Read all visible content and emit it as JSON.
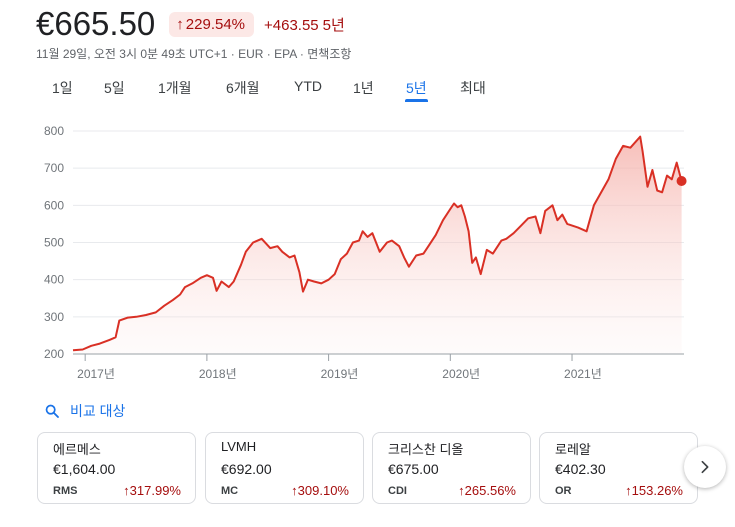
{
  "quote": {
    "price": "€665.50",
    "pct_change": "229.54%",
    "abs_change": "+463.55",
    "period_label": "5년",
    "meta": "11월 29일, 오전 3시 0분 49초 UTC+1 · EUR · EPA · 면책조항",
    "accent_color": "#d93025"
  },
  "range_tabs": [
    {
      "label": "1일"
    },
    {
      "label": "5일"
    },
    {
      "label": "1개월"
    },
    {
      "label": "6개월"
    },
    {
      "label": "YTD"
    },
    {
      "label": "1년"
    },
    {
      "label": "5년",
      "active": true
    },
    {
      "label": "최대"
    }
  ],
  "chart_data": {
    "type": "area",
    "ylim": [
      200,
      800
    ],
    "y_ticks": [
      "200",
      "300",
      "400",
      "500",
      "600",
      "700",
      "800"
    ],
    "x_ticks": [
      {
        "label": "2017년",
        "x": 2017.0
      },
      {
        "label": "2018년",
        "x": 2018.0
      },
      {
        "label": "2019년",
        "x": 2019.0
      },
      {
        "label": "2020년",
        "x": 2020.0
      },
      {
        "label": "2021년",
        "x": 2021.0
      }
    ],
    "xlim": [
      2016.9,
      2021.92
    ],
    "grid": true,
    "series": [
      {
        "color": "#d93025",
        "points": [
          [
            2016.9,
            210
          ],
          [
            2016.98,
            212
          ],
          [
            2017.05,
            222
          ],
          [
            2017.12,
            228
          ],
          [
            2017.2,
            238
          ],
          [
            2017.25,
            245
          ],
          [
            2017.28,
            290
          ],
          [
            2017.35,
            298
          ],
          [
            2017.42,
            300
          ],
          [
            2017.5,
            305
          ],
          [
            2017.58,
            312
          ],
          [
            2017.65,
            330
          ],
          [
            2017.72,
            345
          ],
          [
            2017.78,
            360
          ],
          [
            2017.82,
            380
          ],
          [
            2017.88,
            390
          ],
          [
            2017.95,
            405
          ],
          [
            2018.0,
            412
          ],
          [
            2018.05,
            405
          ],
          [
            2018.08,
            370
          ],
          [
            2018.12,
            395
          ],
          [
            2018.18,
            380
          ],
          [
            2018.22,
            395
          ],
          [
            2018.28,
            440
          ],
          [
            2018.32,
            475
          ],
          [
            2018.38,
            500
          ],
          [
            2018.45,
            510
          ],
          [
            2018.52,
            485
          ],
          [
            2018.58,
            490
          ],
          [
            2018.62,
            475
          ],
          [
            2018.68,
            460
          ],
          [
            2018.72,
            465
          ],
          [
            2018.76,
            420
          ],
          [
            2018.79,
            368
          ],
          [
            2018.83,
            400
          ],
          [
            2018.88,
            395
          ],
          [
            2018.94,
            390
          ],
          [
            2019.0,
            400
          ],
          [
            2019.05,
            415
          ],
          [
            2019.1,
            455
          ],
          [
            2019.15,
            470
          ],
          [
            2019.2,
            500
          ],
          [
            2019.25,
            505
          ],
          [
            2019.28,
            530
          ],
          [
            2019.32,
            515
          ],
          [
            2019.36,
            525
          ],
          [
            2019.42,
            475
          ],
          [
            2019.48,
            500
          ],
          [
            2019.52,
            505
          ],
          [
            2019.58,
            490
          ],
          [
            2019.62,
            460
          ],
          [
            2019.66,
            435
          ],
          [
            2019.72,
            465
          ],
          [
            2019.78,
            470
          ],
          [
            2019.82,
            490
          ],
          [
            2019.88,
            520
          ],
          [
            2019.94,
            560
          ],
          [
            2020.0,
            590
          ],
          [
            2020.03,
            605
          ],
          [
            2020.06,
            595
          ],
          [
            2020.09,
            600
          ],
          [
            2020.12,
            570
          ],
          [
            2020.15,
            530
          ],
          [
            2020.18,
            445
          ],
          [
            2020.21,
            460
          ],
          [
            2020.25,
            415
          ],
          [
            2020.3,
            480
          ],
          [
            2020.35,
            470
          ],
          [
            2020.42,
            505
          ],
          [
            2020.46,
            510
          ],
          [
            2020.52,
            525
          ],
          [
            2020.58,
            545
          ],
          [
            2020.64,
            565
          ],
          [
            2020.7,
            570
          ],
          [
            2020.74,
            525
          ],
          [
            2020.78,
            585
          ],
          [
            2020.84,
            600
          ],
          [
            2020.88,
            560
          ],
          [
            2020.92,
            575
          ],
          [
            2020.96,
            550
          ],
          [
            2021.05,
            540
          ],
          [
            2021.12,
            530
          ],
          [
            2021.18,
            600
          ],
          [
            2021.24,
            635
          ],
          [
            2021.3,
            670
          ],
          [
            2021.36,
            725
          ],
          [
            2021.42,
            760
          ],
          [
            2021.48,
            755
          ],
          [
            2021.52,
            770
          ],
          [
            2021.56,
            785
          ],
          [
            2021.58,
            745
          ],
          [
            2021.62,
            650
          ],
          [
            2021.66,
            695
          ],
          [
            2021.7,
            640
          ],
          [
            2021.74,
            635
          ],
          [
            2021.78,
            680
          ],
          [
            2021.82,
            670
          ],
          [
            2021.86,
            715
          ],
          [
            2021.9,
            665
          ]
        ],
        "end_marker": [
          2021.9,
          665.5
        ]
      }
    ]
  },
  "compare": {
    "label": "비교 대상",
    "cards": [
      {
        "name": "에르메스",
        "price": "€1,604.00",
        "ticker": "RMS",
        "pct": "317.99%"
      },
      {
        "name": "LVMH",
        "price": "€692.00",
        "ticker": "MC",
        "pct": "309.10%"
      },
      {
        "name": "크리스찬 디올",
        "price": "€675.00",
        "ticker": "CDI",
        "pct": "265.56%"
      },
      {
        "name": "로레알",
        "price": "€402.30",
        "ticker": "OR",
        "pct": "153.26%"
      }
    ]
  },
  "icons": {
    "up_arrow": "arrow-up-icon",
    "search": "search-icon",
    "next": "chevron-right-icon"
  }
}
